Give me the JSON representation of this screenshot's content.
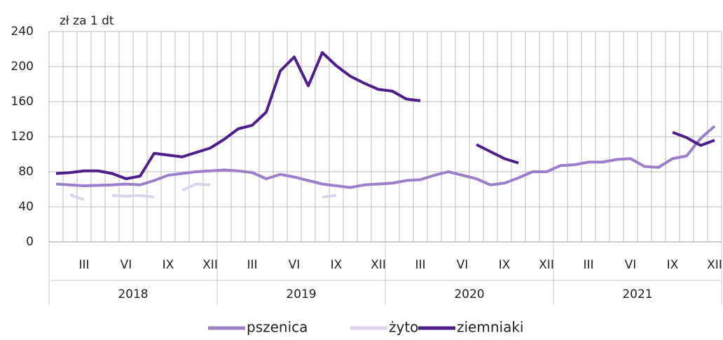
{
  "chart_data": {
    "type": "line",
    "y_axis_label": "zł za 1 dt",
    "categories": [
      null,
      null,
      "III",
      null,
      null,
      "VI",
      null,
      null,
      "IX",
      null,
      null,
      "XII",
      null,
      null,
      "III",
      null,
      null,
      "VI",
      null,
      null,
      "IX",
      null,
      null,
      "XII",
      null,
      null,
      "III",
      null,
      null,
      "VI",
      null,
      null,
      "IX",
      null,
      null,
      "XII",
      null,
      null,
      "III",
      null,
      null,
      "VI",
      null,
      null,
      "IX",
      null,
      null,
      "XII"
    ],
    "years": [
      "2018",
      "2019",
      "2020",
      "2021"
    ],
    "series": [
      {
        "name": "pszenica",
        "color": "#9b7fc9",
        "values": [
          66,
          65,
          64,
          64.5,
          65,
          66,
          65,
          70,
          76,
          78,
          80,
          81,
          82,
          81,
          79,
          72,
          77,
          74,
          70,
          66,
          64,
          62,
          65,
          66,
          67,
          70,
          71,
          76,
          80,
          76,
          72,
          65,
          67,
          73,
          80,
          80,
          87,
          88,
          91,
          91,
          94,
          95,
          86,
          85,
          95,
          98,
          118,
          132
        ]
      },
      {
        "name": "żyto",
        "color": "#ddd4ec",
        "values": [
          null,
          54,
          48,
          null,
          53,
          52,
          53,
          51,
          null,
          59,
          66,
          65,
          null,
          null,
          null,
          null,
          null,
          null,
          null,
          51,
          53,
          null,
          null,
          null,
          null,
          null,
          null,
          null,
          null,
          null,
          null,
          null,
          null,
          null,
          null,
          null,
          null,
          null,
          null,
          null,
          null,
          null,
          null,
          null,
          null,
          null,
          null,
          null
        ]
      },
      {
        "name": "ziemniaki",
        "color": "#4b1e8a",
        "values": [
          78,
          79,
          81,
          81,
          78,
          72,
          75,
          101,
          99,
          97,
          102,
          107,
          117,
          129,
          133,
          148,
          195,
          211,
          178,
          216,
          201,
          189,
          181,
          174,
          172,
          163,
          161,
          null,
          null,
          null,
          111,
          103,
          95,
          90,
          null,
          null,
          null,
          null,
          null,
          null,
          null,
          null,
          null,
          null,
          125,
          119,
          110,
          116
        ]
      }
    ],
    "ylim": [
      0,
      240
    ],
    "yticks": [
      0,
      40,
      80,
      120,
      160,
      200,
      240
    ],
    "grid": true
  }
}
